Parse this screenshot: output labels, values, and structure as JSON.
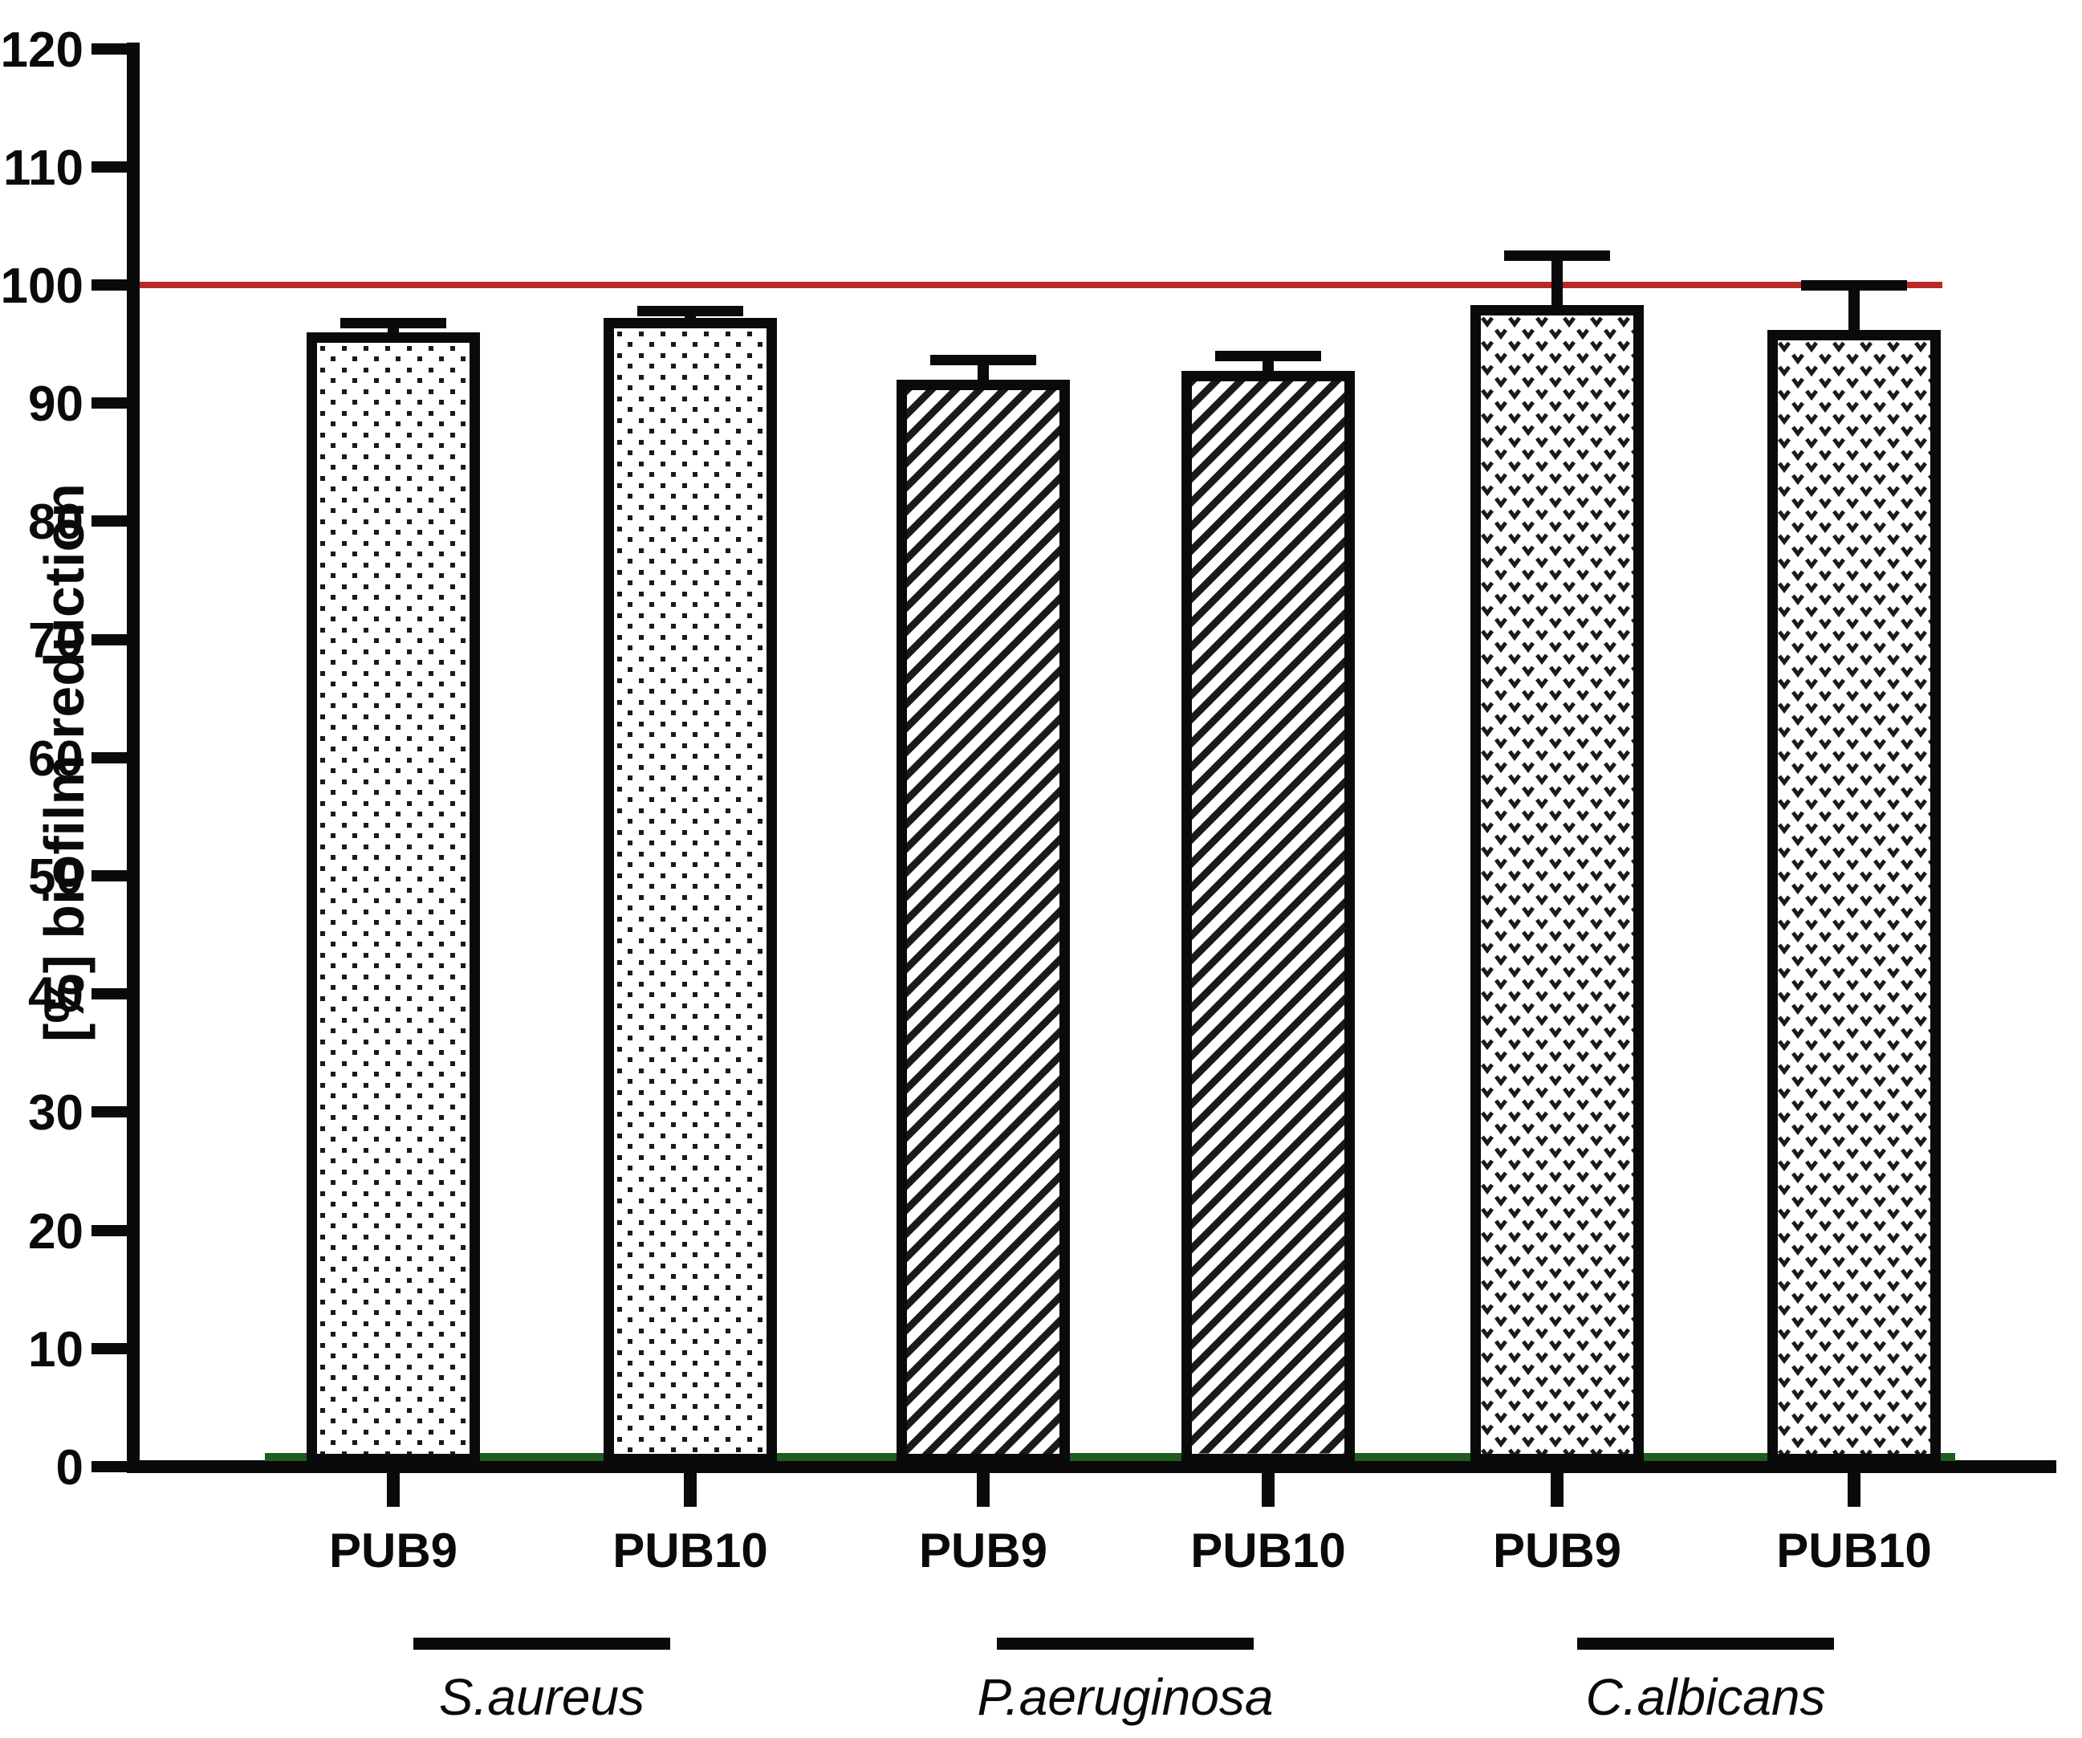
{
  "figure": {
    "background": "#ffffff",
    "axis_color": "#0a0a0a"
  },
  "chart_data": {
    "type": "bar",
    "title": "",
    "xlabel": "",
    "ylabel": "[%] biofilm reduction",
    "ylim": [
      0,
      120
    ],
    "yticks": [
      0,
      10,
      20,
      30,
      40,
      50,
      60,
      70,
      80,
      90,
      100,
      110,
      120
    ],
    "grid": false,
    "legend": "none",
    "error_bars": "sd, upper only, black caps",
    "reference_lines": [
      {
        "name": "100-percent-line",
        "value": 100,
        "color": "#b92b27"
      },
      {
        "name": "baseline-line",
        "value": 0,
        "color": "#1f5c1f"
      }
    ],
    "groups": [
      {
        "label": "S.aureus",
        "pattern": "dots",
        "bars": [
          {
            "label": "PUB9",
            "value": 96.0,
            "error": 0.8
          },
          {
            "label": "PUB10",
            "value": 97.2,
            "error": 0.6
          }
        ]
      },
      {
        "label": "P.aeruginosa",
        "pattern": "diagonal-stripes",
        "bars": [
          {
            "label": "PUB9",
            "value": 92.0,
            "error": 1.7
          },
          {
            "label": "PUB10",
            "value": 92.7,
            "error": 1.3
          }
        ]
      },
      {
        "label": "C.albicans",
        "pattern": "v-weave",
        "bars": [
          {
            "label": "PUB9",
            "value": 98.3,
            "error": 4.2
          },
          {
            "label": "PUB10",
            "value": 96.2,
            "error": 3.8
          }
        ]
      }
    ]
  }
}
